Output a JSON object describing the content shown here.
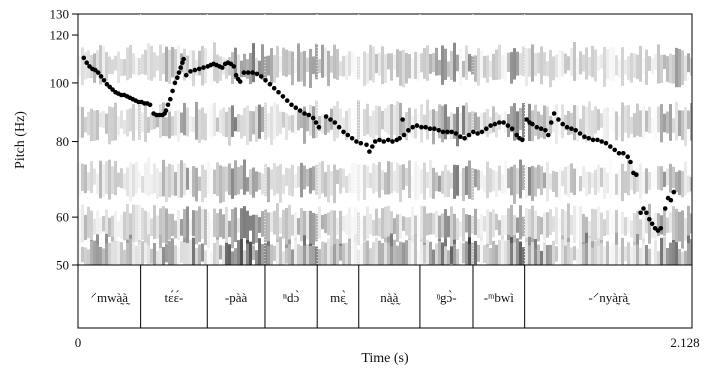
{
  "chart_data": {
    "type": "scatter",
    "xlabel": "Time (s)",
    "ylabel": "Pitch (Hz)",
    "xlim": [
      0,
      2.128
    ],
    "ylim": [
      50,
      130
    ],
    "x_ticks": [
      "0",
      "2.128"
    ],
    "y_ticks": [
      50,
      60,
      80,
      100,
      120,
      130
    ],
    "scale": "log",
    "background": "spectrogram",
    "grid": false,
    "segment_tier": [
      {
        "label": "⸍mwà̰à̰",
        "start": 0.0,
        "end": 0.217
      },
      {
        "label": "tɛ́ɛ́-",
        "start": 0.217,
        "end": 0.448
      },
      {
        "label": "-pàà",
        "start": 0.448,
        "end": 0.648
      },
      {
        "label": "ⁿdɔ̀",
        "start": 0.648,
        "end": 0.829
      },
      {
        "label": "mɛ̰̀",
        "start": 0.829,
        "end": 0.973
      },
      {
        "label": "nà̰à̰",
        "start": 0.973,
        "end": 1.185
      },
      {
        "label": "ᵑgɔ̀-",
        "start": 1.185,
        "end": 1.369
      },
      {
        "label": "-ᵐbwì",
        "start": 1.369,
        "end": 1.548
      },
      {
        "label": "-⸍nyà̰rà̰",
        "start": 1.548,
        "end": 2.128
      }
    ],
    "series": [
      {
        "marker_color": "#000000",
        "points": [
          [
            0.02,
            110
          ],
          [
            0.03,
            108
          ],
          [
            0.04,
            106.5
          ],
          [
            0.05,
            105.5
          ],
          [
            0.06,
            105
          ],
          [
            0.07,
            104
          ],
          [
            0.08,
            102.5
          ],
          [
            0.09,
            101
          ],
          [
            0.1,
            99.5
          ],
          [
            0.11,
            98.5
          ],
          [
            0.12,
            97.5
          ],
          [
            0.13,
            96.5
          ],
          [
            0.14,
            96
          ],
          [
            0.15,
            95.5
          ],
          [
            0.16,
            95.5
          ],
          [
            0.17,
            95
          ],
          [
            0.18,
            94.5
          ],
          [
            0.19,
            94
          ],
          [
            0.2,
            93.5
          ],
          [
            0.21,
            93
          ],
          [
            0.22,
            93
          ],
          [
            0.23,
            92.5
          ],
          [
            0.24,
            92.5
          ],
          [
            0.25,
            92
          ],
          [
            0.262,
            89
          ],
          [
            0.272,
            88.5
          ],
          [
            0.282,
            88.5
          ],
          [
            0.292,
            88.5
          ],
          [
            0.3,
            89
          ],
          [
            0.305,
            90
          ],
          [
            0.312,
            92
          ],
          [
            0.32,
            94
          ],
          [
            0.328,
            97
          ],
          [
            0.336,
            100
          ],
          [
            0.344,
            102
          ],
          [
            0.35,
            104
          ],
          [
            0.356,
            106
          ],
          [
            0.362,
            108
          ],
          [
            0.366,
            109.5
          ],
          [
            0.375,
            103
          ],
          [
            0.39,
            104.5
          ],
          [
            0.405,
            105
          ],
          [
            0.42,
            105.5
          ],
          [
            0.435,
            106
          ],
          [
            0.45,
            106.5
          ],
          [
            0.46,
            107
          ],
          [
            0.47,
            107.5
          ],
          [
            0.48,
            107
          ],
          [
            0.49,
            106.5
          ],
          [
            0.5,
            106
          ],
          [
            0.51,
            107.5
          ],
          [
            0.52,
            108
          ],
          [
            0.53,
            107.5
          ],
          [
            0.54,
            106.5
          ],
          [
            0.548,
            103
          ],
          [
            0.555,
            101.5
          ],
          [
            0.562,
            100.5
          ],
          [
            0.575,
            104
          ],
          [
            0.59,
            104
          ],
          [
            0.605,
            104
          ],
          [
            0.62,
            103.5
          ],
          [
            0.635,
            102.5
          ],
          [
            0.65,
            101
          ],
          [
            0.665,
            99.5
          ],
          [
            0.68,
            98
          ],
          [
            0.695,
            96.5
          ],
          [
            0.71,
            95
          ],
          [
            0.725,
            93.5
          ],
          [
            0.74,
            92
          ],
          [
            0.755,
            91
          ],
          [
            0.77,
            90
          ],
          [
            0.785,
            89
          ],
          [
            0.8,
            88.5
          ],
          [
            0.815,
            87.5
          ],
          [
            0.825,
            86
          ],
          [
            0.835,
            84.5
          ],
          [
            0.86,
            88
          ],
          [
            0.875,
            87
          ],
          [
            0.89,
            86
          ],
          [
            0.905,
            84.5
          ],
          [
            0.92,
            83
          ],
          [
            0.935,
            82
          ],
          [
            0.95,
            81
          ],
          [
            0.965,
            80
          ],
          [
            0.98,
            79.5
          ],
          [
            1.0,
            79
          ],
          [
            1.01,
            77
          ],
          [
            1.02,
            78.5
          ],
          [
            1.03,
            80
          ],
          [
            1.045,
            80.5
          ],
          [
            1.06,
            80
          ],
          [
            1.075,
            80.5
          ],
          [
            1.09,
            80
          ],
          [
            1.105,
            80.5
          ],
          [
            1.115,
            81
          ],
          [
            1.125,
            87
          ],
          [
            1.13,
            82
          ],
          [
            1.145,
            83.5
          ],
          [
            1.16,
            84.5
          ],
          [
            1.175,
            85
          ],
          [
            1.19,
            84.5
          ],
          [
            1.205,
            84.5
          ],
          [
            1.22,
            84
          ],
          [
            1.235,
            84
          ],
          [
            1.25,
            83.5
          ],
          [
            1.265,
            83
          ],
          [
            1.28,
            83
          ],
          [
            1.295,
            83
          ],
          [
            1.31,
            82.5
          ],
          [
            1.325,
            81.5
          ],
          [
            1.34,
            81
          ],
          [
            1.355,
            82
          ],
          [
            1.37,
            83
          ],
          [
            1.385,
            82.5
          ],
          [
            1.4,
            83
          ],
          [
            1.415,
            84
          ],
          [
            1.43,
            85
          ],
          [
            1.445,
            85.5
          ],
          [
            1.46,
            86
          ],
          [
            1.475,
            86
          ],
          [
            1.49,
            85
          ],
          [
            1.505,
            84
          ],
          [
            1.52,
            82
          ],
          [
            1.53,
            81
          ],
          [
            1.54,
            80.5
          ],
          [
            1.555,
            87
          ],
          [
            1.565,
            86
          ],
          [
            1.575,
            85.5
          ],
          [
            1.59,
            84.5
          ],
          [
            1.605,
            84
          ],
          [
            1.62,
            83.5
          ],
          [
            1.63,
            82
          ],
          [
            1.64,
            86
          ],
          [
            1.65,
            89
          ],
          [
            1.665,
            87
          ],
          [
            1.68,
            85.5
          ],
          [
            1.695,
            84.5
          ],
          [
            1.71,
            84
          ],
          [
            1.725,
            83.5
          ],
          [
            1.74,
            82.5
          ],
          [
            1.755,
            81.5
          ],
          [
            1.77,
            81
          ],
          [
            1.785,
            80.5
          ],
          [
            1.8,
            80.5
          ],
          [
            1.815,
            80
          ],
          [
            1.83,
            79.5
          ],
          [
            1.845,
            78.5
          ],
          [
            1.86,
            77.5
          ],
          [
            1.875,
            76.5
          ],
          [
            1.89,
            76.5
          ],
          [
            1.905,
            75.5
          ],
          [
            1.915,
            74
          ],
          [
            1.925,
            71
          ],
          [
            1.935,
            70.5
          ],
          [
            1.95,
            61
          ],
          [
            1.96,
            62
          ],
          [
            1.97,
            61
          ],
          [
            1.98,
            59.5
          ],
          [
            1.99,
            58.5
          ],
          [
            2.0,
            57.5
          ],
          [
            2.01,
            57
          ],
          [
            2.02,
            57.5
          ],
          [
            2.035,
            62
          ],
          [
            2.045,
            64.5
          ],
          [
            2.055,
            64
          ],
          [
            2.065,
            66
          ]
        ]
      }
    ]
  }
}
